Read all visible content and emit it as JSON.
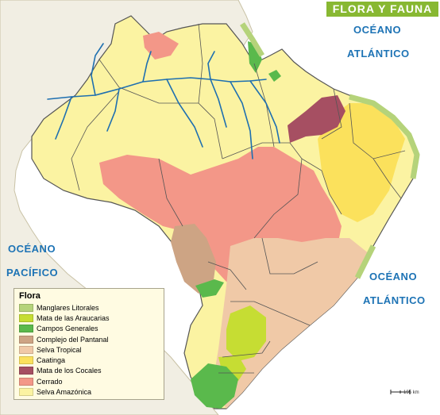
{
  "map": {
    "title": "FLORA Y FAUNA",
    "oceans": {
      "atlantic_north_line1": "OCÉANO",
      "atlantic_north_line2": "ATLÁNTICO",
      "pacific_line1": "OCÉANO",
      "pacific_line2": "PACÍFICO",
      "atlantic_south_line1": "OCÉANO",
      "atlantic_south_line2": "ATLÁNTICO"
    },
    "legend": {
      "title": "Flora",
      "items": [
        {
          "label": "Manglares Litorales",
          "color": "#b5d37a"
        },
        {
          "label": "Mata de las Araucarias",
          "color": "#c6dd33"
        },
        {
          "label": "Campos Generales",
          "color": "#5ab94c"
        },
        {
          "label": "Complejo del Pantanal",
          "color": "#cda484"
        },
        {
          "label": "Selva Tropical",
          "color": "#f0c9a7"
        },
        {
          "label": "Caatinga",
          "color": "#fbe15c"
        },
        {
          "label": "Mata de los Cocales",
          "color": "#a64f62"
        },
        {
          "label": "Cerrado",
          "color": "#f39788"
        },
        {
          "label": "Selva Amazónica",
          "color": "#fbf3a2"
        }
      ]
    },
    "scale": {
      "label": "195 km"
    },
    "colors": {
      "ocean": "#ffffff",
      "neighbor_land": "#f1eee3",
      "river": "#1e6fb0",
      "border": "#444444",
      "title_background": "#88b832",
      "ocean_text": "#1d73b5"
    }
  }
}
